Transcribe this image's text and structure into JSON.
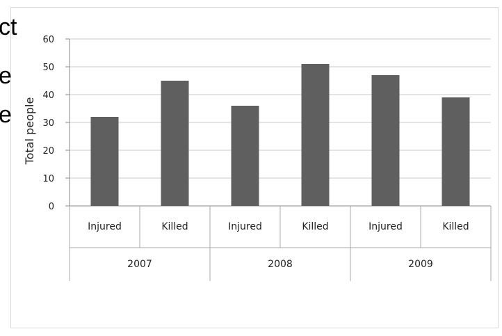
{
  "background_text": [
    "ct",
    "e",
    "e"
  ],
  "chart_data": {
    "type": "bar",
    "ylabel": "Total people",
    "ylim": [
      0,
      60
    ],
    "yticks": [
      0,
      10,
      20,
      30,
      40,
      50,
      60
    ],
    "grid": true,
    "bar_color": "#5f5f5f",
    "categories": [
      "Injured",
      "Killed",
      "Injured",
      "Killed",
      "Injured",
      "Killed"
    ],
    "groups": [
      {
        "label": "2007",
        "categories": [
          "Injured",
          "Killed"
        ],
        "values": [
          32,
          45
        ]
      },
      {
        "label": "2008",
        "categories": [
          "Injured",
          "Killed"
        ],
        "values": [
          36,
          51
        ]
      },
      {
        "label": "2009",
        "categories": [
          "Injured",
          "Killed"
        ],
        "values": [
          47,
          39
        ]
      }
    ],
    "values": [
      32,
      45,
      36,
      51,
      47,
      39
    ]
  }
}
